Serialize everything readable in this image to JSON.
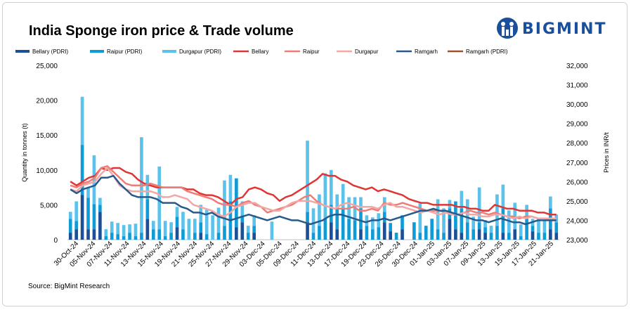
{
  "header": {
    "title": "India Sponge iron price & Trade volume"
  },
  "brand": {
    "name": "BIGMINT",
    "color": "#1a4f9c"
  },
  "footer": {
    "source": "Source: BigMint Research"
  },
  "chart_data": {
    "type": "bar+line",
    "title": "India Sponge iron price & Trade volume",
    "y_left_label": "Quantity in tonnes (t)",
    "y_right_label": "Prices in INR/t",
    "y_left_range": [
      0,
      25000
    ],
    "y_right_range": [
      23000,
      32000
    ],
    "y_left_ticks": [
      "0",
      "5,000",
      "10,000",
      "15,000",
      "20,000",
      "25,000"
    ],
    "y_right_ticks": [
      "23,000",
      "24,000",
      "25,000",
      "26,000",
      "27,000",
      "28,000",
      "29,000",
      "30,000",
      "31,000",
      "32,000"
    ],
    "x_tick_labels": [
      "30-Oct-24",
      "05-Nov-24",
      "07-Nov-24",
      "11-Nov-24",
      "13-Nov-24",
      "15-Nov-24",
      "19-Nov-24",
      "21-Nov-24",
      "25-Nov-24",
      "27-Nov-24",
      "29-Nov-24",
      "03-Dec-24",
      "05-Dec-24",
      "09-Dec-24",
      "11-Dec-24",
      "13-Dec-24",
      "17-Dec-24",
      "19-Dec-24",
      "23-Dec-24",
      "26-Dec-24",
      "30-Dec-24",
      "01-Jan-25",
      "03-Jan-25",
      "07-Jan-25",
      "09-Jan-25",
      "13-Jan-25",
      "15-Jan-25",
      "17-Jan-25",
      "21-Jan-25"
    ],
    "legend": [
      "Bellary (PDRI)",
      "Raipur (PDRI)",
      "Durgapur (PDRI)",
      "Bellary",
      "Raipur",
      "Durgapur",
      "Ramgarh",
      "Ramgarh (PDRI)"
    ],
    "colors": {
      "bellary_pdri": "#1c4f96",
      "raipur_pdri": "#0f9bd7",
      "durgapur_pdri": "#5bc2ec",
      "bellary": "#e03535",
      "raipur": "#ee7c77",
      "durgapur": "#f2a7a4",
      "ramgarh": "#275a8c",
      "ramgarh_pdri": "#a0522d"
    },
    "bar_series": [
      {
        "key": "bellary_pdri",
        "name": "Bellary (PDRI)",
        "values": [
          1000,
          1500,
          6400,
          1500,
          1500,
          4000,
          0,
          0,
          0,
          0,
          0,
          0,
          0,
          3000,
          0,
          0,
          0,
          0,
          1800,
          0,
          0,
          0,
          1000,
          0,
          0,
          0,
          0,
          0,
          1800,
          2500,
          0,
          1000,
          0,
          0,
          0,
          0,
          0,
          0,
          0,
          0,
          2500,
          0,
          0,
          0,
          2500,
          1500,
          0,
          0,
          0,
          1500,
          0,
          0,
          0,
          2500,
          1200,
          0,
          1500,
          0,
          0,
          0,
          0,
          0,
          0,
          0,
          3000,
          1500,
          1000,
          0,
          0,
          1500,
          1000,
          0,
          0,
          1000,
          0,
          1500,
          0,
          0,
          1200,
          0,
          0,
          1500,
          1000
        ]
      },
      {
        "key": "raipur_pdri",
        "name": "Raipur (PDRI)",
        "values": [
          2000,
          1200,
          7200,
          4500,
          3600,
          1000,
          500,
          1000,
          800,
          500,
          1000,
          500,
          1000,
          2800,
          1500,
          1500,
          500,
          1000,
          1500,
          1500,
          0,
          1000,
          1500,
          800,
          0,
          1000,
          2000,
          5500,
          7000,
          1000,
          1000,
          1000,
          0,
          0,
          0,
          0,
          0,
          0,
          0,
          0,
          1500,
          1000,
          2000,
          3000,
          2500,
          3000,
          4500,
          3000,
          2800,
          3000,
          2000,
          1500,
          1800,
          1500,
          1200,
          1000,
          2000,
          0,
          2500,
          1000,
          2000,
          3000,
          1500,
          1000,
          1500,
          4000,
          3500,
          2500,
          1500,
          1000,
          800,
          1000,
          2000,
          3500,
          1000,
          0,
          500,
          3000,
          800,
          1000,
          1000,
          3000,
          1500
        ]
      },
      {
        "key": "durgapur_pdri",
        "name": "Durgapur (PDRI)",
        "values": [
          1000,
          2800,
          6900,
          1500,
          7000,
          1000,
          1000,
          1600,
          1600,
          1600,
          1200,
          1800,
          13700,
          3500,
          1200,
          9000,
          2200,
          1500,
          1400,
          2500,
          3000,
          2000,
          2500,
          3500,
          3500,
          3600,
          6500,
          3800,
          0,
          2000,
          1000,
          1500,
          0,
          0,
          2600,
          0,
          0,
          0,
          0,
          0,
          10200,
          3500,
          4500,
          6500,
          5000,
          2000,
          3500,
          3100,
          3300,
          1600,
          1500,
          1700,
          2000,
          2100,
          0,
          0,
          0,
          0,
          0,
          4200,
          0,
          0,
          4300,
          3500,
          1200,
          0,
          2500,
          3300,
          1800,
          5000,
          1000,
          1000,
          4500,
          3400,
          3200,
          3800,
          1700,
          2000,
          1000,
          2000,
          1800,
          1700,
          1100
        ]
      },
      {
        "key": "ramgarh_pdri",
        "name": "Ramgarh (PDRI)",
        "values": []
      }
    ],
    "line_series": [
      {
        "key": "bellary",
        "name": "Bellary",
        "values": [
          26000,
          25800,
          26000,
          26200,
          26300,
          26700,
          26600,
          26700,
          26700,
          26500,
          26400,
          26100,
          25900,
          25800,
          25700,
          25700,
          25700,
          25700,
          25700,
          25600,
          25600,
          25400,
          25300,
          25300,
          25200,
          25000,
          24800,
          25100,
          25200,
          25600,
          25700,
          25600,
          25400,
          25300,
          25000,
          25200,
          25300,
          25500,
          25700,
          25900,
          26100,
          26400,
          26300,
          26300,
          26100,
          26000,
          25800,
          25700,
          25600,
          25700,
          25500,
          25600,
          25500,
          25400,
          25300,
          25100,
          25000,
          24900,
          24900,
          24800,
          24800,
          24800,
          24800,
          24700,
          24700,
          24600,
          24600,
          24500,
          24500,
          24800,
          24700,
          24600,
          24600,
          24500,
          24500,
          24500,
          24400,
          24400,
          24300,
          24300
        ]
      },
      {
        "key": "raipur",
        "name": "Raipur",
        "values": [
          25800,
          25700,
          25900,
          26000,
          26200,
          26700,
          26800,
          26500,
          26200,
          25900,
          25800,
          25800,
          25800,
          25900,
          25800,
          25700,
          25700,
          25700,
          25700,
          25500,
          25400,
          25300,
          25200,
          25100,
          24900,
          24800,
          24800,
          24700,
          24900,
          25000,
          24800,
          24700,
          24400,
          24500,
          24600,
          24700,
          24800,
          25000,
          25200,
          25300,
          25000,
          24800,
          24700,
          24600,
          24600,
          24600,
          24700,
          24500,
          24500,
          24600,
          24500,
          24900,
          24800,
          24800,
          24900,
          24800,
          24700,
          24600,
          24500,
          24500,
          24500,
          24400,
          24400,
          24300,
          24400,
          24500,
          24400,
          24400,
          24300,
          24400,
          24300,
          24200,
          24200,
          24100,
          24200,
          24200,
          24100,
          24100,
          24000,
          24000
        ]
      },
      {
        "key": "durgapur",
        "name": "Durgapur",
        "values": [
          25600,
          25500,
          25800,
          25900,
          26000,
          26400,
          26700,
          26300,
          25800,
          25600,
          25500,
          25500,
          25500,
          25500,
          25400,
          25200,
          25200,
          25300,
          25200,
          25100,
          24800,
          24700,
          24600,
          24500,
          24300,
          24200,
          24400,
          24700,
          24800,
          24900,
          24900,
          24700,
          24600,
          24500,
          24500,
          24700,
          24900,
          25000,
          25000,
          25000,
          24900,
          24800,
          24700,
          24600,
          24800,
          24900,
          24800,
          24700,
          24700,
          24700,
          24600,
          24800,
          24900,
          24700,
          24700,
          24600,
          24500,
          24400,
          24500,
          24400,
          24300,
          24400,
          24300,
          24300,
          24400,
          24300,
          24300,
          24200,
          24200,
          24300,
          24300,
          24200,
          24100,
          24200,
          24100,
          24200,
          24100,
          24100,
          24100,
          24100
        ]
      },
      {
        "key": "ramgarh",
        "name": "Ramgarh",
        "values": [
          25600,
          25400,
          25600,
          25700,
          25800,
          26200,
          26200,
          26300,
          25900,
          25600,
          25300,
          25200,
          25200,
          25200,
          25100,
          24900,
          24900,
          24900,
          24700,
          24600,
          24400,
          24400,
          24300,
          24400,
          24200,
          24100,
          24000,
          24100,
          24200,
          24300,
          24200,
          24100,
          24000,
          24100,
          24200,
          24100,
          24000,
          24000,
          23900,
          23800,
          23900,
          24000,
          24200,
          24300,
          24300,
          24200,
          24100,
          24000,
          23900,
          24000,
          24000,
          24100,
          24000,
          24100,
          24200,
          24300,
          24400,
          24500,
          24500,
          24600,
          24500,
          24500,
          24400,
          24300,
          24200,
          24100,
          24000,
          24000,
          23900,
          24000,
          24100,
          24000,
          23900,
          23900,
          23800,
          23900,
          24000,
          24000,
          24000,
          24000
        ]
      }
    ]
  }
}
